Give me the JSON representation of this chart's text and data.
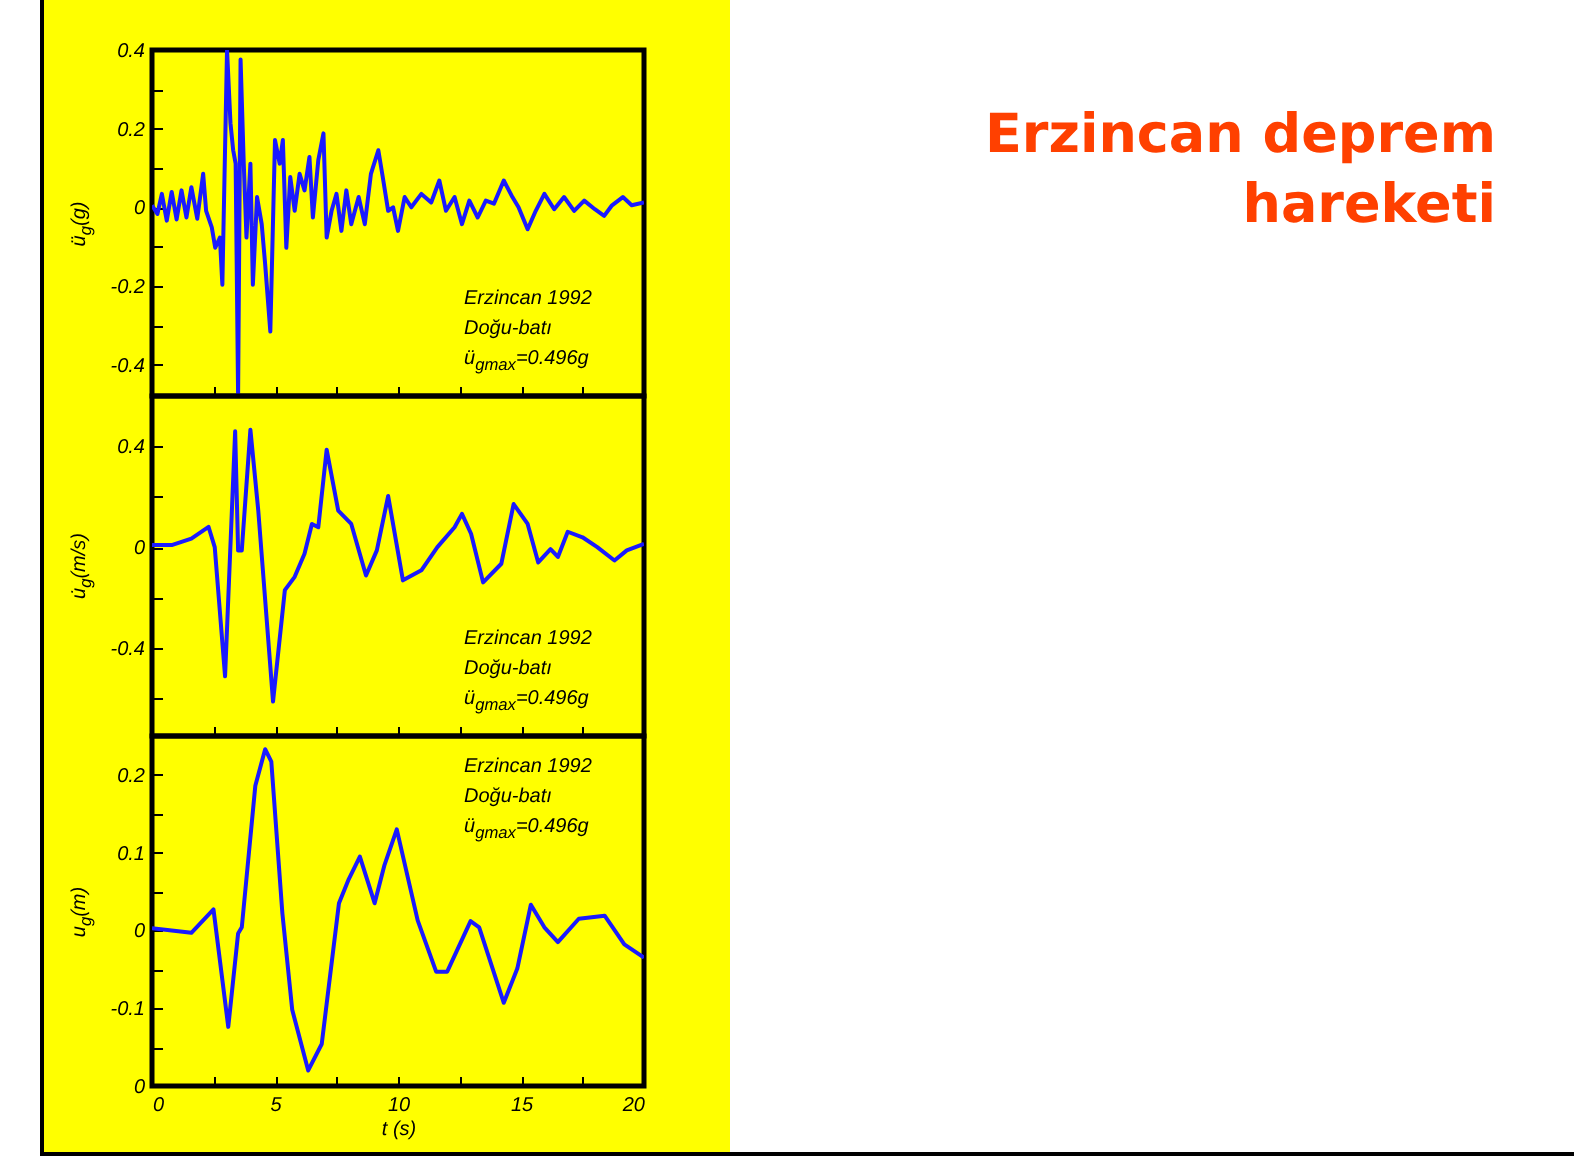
{
  "chart_data": [
    {
      "type": "line",
      "ylabel": "ü$_{g}$(g)",
      "annotations": [
        "Erzincan 1992",
        "Doğu-batı",
        "ü$_{gmax}$=0.496g"
      ],
      "tick_labels": "y",
      "xlim": [
        0,
        20
      ],
      "xticks": [
        0,
        {
          "value": 2.5,
          "label": null
        },
        5,
        {
          "value": 7.5,
          "label": null
        },
        10,
        {
          "value": 12.5,
          "label": null
        },
        15,
        {
          "value": 17.5,
          "label": null
        },
        20
      ],
      "ylim": [
        -0.48,
        0.4
      ],
      "yticks": [
        -0.4,
        {
          "value": -0.3,
          "label": null
        },
        -0.2,
        {
          "value": -0.1,
          "label": null
        },
        0,
        {
          "value": 0.1,
          "label": null
        },
        0.2,
        {
          "value": 0.3,
          "label": null
        },
        0.4
      ],
      "x": [
        0,
        0.22,
        0.4,
        0.6,
        0.8,
        1.0,
        1.2,
        1.4,
        1.6,
        1.84,
        2.08,
        2.2,
        2.43,
        2.57,
        2.76,
        2.86,
        3.05,
        3.19,
        3.3,
        3.4,
        3.5,
        3.6,
        3.73,
        3.84,
        4.0,
        4.1,
        4.27,
        4.46,
        4.6,
        4.81,
        5.0,
        5.19,
        5.32,
        5.46,
        5.62,
        5.8,
        6.0,
        6.2,
        6.4,
        6.54,
        6.76,
        6.97,
        7.1,
        7.3,
        7.5,
        7.7,
        7.9,
        8.1,
        8.4,
        8.65,
        8.9,
        9.2,
        9.38,
        9.6,
        9.8,
        10.0,
        10.27,
        10.54,
        10.95,
        11.35,
        11.68,
        11.95,
        12.3,
        12.6,
        12.9,
        13.24,
        13.57,
        13.9,
        14.3,
        14.65,
        14.9,
        15.27,
        15.6,
        15.95,
        16.35,
        16.75,
        17.16,
        17.57,
        18.0,
        18.38,
        18.7,
        19.14,
        19.5,
        20
      ],
      "series": [
        {
          "color": "#1a1aff",
          "values": [
            0.005,
            -0.017,
            0.034,
            -0.034,
            0.039,
            -0.031,
            0.043,
            -0.026,
            0.051,
            -0.029,
            0.085,
            -0.009,
            -0.051,
            -0.103,
            -0.077,
            -0.197,
            0.4,
            0.214,
            0.145,
            0.111,
            -0.48,
            0.376,
            0.111,
            -0.077,
            0.111,
            -0.197,
            0.026,
            -0.043,
            -0.145,
            -0.316,
            0.171,
            0.111,
            0.171,
            -0.103,
            0.077,
            -0.009,
            0.085,
            0.043,
            0.128,
            -0.026,
            0.12,
            0.188,
            -0.077,
            -0.009,
            0.034,
            -0.06,
            0.043,
            -0.043,
            0.026,
            -0.043,
            0.085,
            0.145,
            0.077,
            -0.009,
            0,
            -0.06,
            0.026,
            0,
            0.034,
            0.012,
            0.068,
            -0.009,
            0.026,
            -0.043,
            0.017,
            -0.026,
            0.017,
            0.009,
            0.068,
            0.026,
            0,
            -0.056,
            -0.009,
            0.034,
            -0.005,
            0.026,
            -0.009,
            0.017,
            -0.005,
            -0.022,
            0.005,
            0.026,
            0.005,
            0.012
          ]
        }
      ]
    },
    {
      "type": "line",
      "ylabel": "u̇$_{g}$(m/s)",
      "annotations": [
        "Erzincan 1992",
        "Doğu-batı",
        "ü$_{gmax}$=0.496g"
      ],
      "tick_labels": "y",
      "xlim": [
        0,
        20
      ],
      "xticks": [
        0,
        {
          "value": 2.5,
          "label": null
        },
        5,
        {
          "value": 7.5,
          "label": null
        },
        10,
        {
          "value": 12.5,
          "label": null
        },
        15,
        {
          "value": 17.5,
          "label": null
        },
        20
      ],
      "ylim": [
        -0.75,
        0.6
      ],
      "yticks": [
        {
          "value": -0.6,
          "label": null
        },
        -0.4,
        {
          "value": -0.2,
          "label": null
        },
        0,
        {
          "value": 0.2,
          "label": null
        },
        0.4
      ],
      "x": [
        0,
        0.8,
        1.6,
        2.3,
        2.55,
        2.97,
        3.38,
        3.5,
        3.65,
        4.0,
        4.32,
        4.92,
        5.4,
        5.8,
        6.2,
        6.5,
        6.76,
        7.1,
        7.57,
        8.1,
        8.7,
        9.14,
        9.6,
        10.2,
        10.95,
        11.6,
        12.3,
        12.6,
        12.97,
        13.46,
        14.2,
        14.7,
        15.27,
        15.7,
        16.2,
        16.5,
        16.9,
        17.5,
        18.1,
        18.8,
        19.3,
        20
      ],
      "series": [
        {
          "color": "#1a1aff",
          "values": [
            0.008,
            0.008,
            0.034,
            0.08,
            0,
            -0.513,
            0.46,
            -0.013,
            -0.013,
            0.466,
            0.145,
            -0.613,
            -0.171,
            -0.118,
            -0.026,
            0.092,
            0.079,
            0.387,
            0.145,
            0.092,
            -0.113,
            -0.013,
            0.203,
            -0.132,
            -0.092,
            0,
            0.079,
            0.132,
            0.053,
            -0.14,
            -0.066,
            0.171,
            0.092,
            -0.061,
            -0.008,
            -0.039,
            0.061,
            0.039,
            0,
            -0.053,
            -0.013,
            0.013
          ]
        }
      ]
    },
    {
      "type": "line",
      "ylabel": "u$_{g}$(m)",
      "xlabel": "t (s)",
      "annotations": [
        "Erzincan 1992",
        "Doğu-batı",
        "ü$_{gmax}$=0.496g"
      ],
      "xlim": [
        0,
        20
      ],
      "xticks": [
        0,
        {
          "value": 2.5,
          "label": null
        },
        5,
        {
          "value": 7.5,
          "label": null
        },
        10,
        {
          "value": 12.5,
          "label": null
        },
        15,
        {
          "value": 17.5,
          "label": null
        },
        20
      ],
      "ylim": [
        -0.2,
        0.25
      ],
      "yticks": [
        {
          "value": -0.2,
          "label": "0"
        },
        {
          "value": -0.15,
          "label": null
        },
        -0.1,
        {
          "value": -0.05,
          "label": null
        },
        0,
        {
          "value": 0.05,
          "label": null
        },
        0.1,
        {
          "value": 0.15,
          "label": null
        },
        0.2
      ],
      "x": [
        0,
        1.6,
        2.5,
        3.1,
        3.5,
        3.65,
        4.2,
        4.6,
        4.85,
        5.3,
        5.7,
        6.35,
        6.9,
        7.6,
        8.0,
        8.45,
        9.05,
        9.45,
        9.95,
        10.8,
        11.55,
        12.0,
        12.95,
        13.3,
        14.3,
        14.85,
        15.4,
        15.95,
        16.5,
        17.35,
        18.4,
        19.2,
        20
      ],
      "series": [
        {
          "color": "#1a1aff",
          "values": [
            0.003,
            -0.003,
            0.027,
            -0.124,
            -0.004,
            0.004,
            0.186,
            0.233,
            0.217,
            0.022,
            -0.102,
            -0.18,
            -0.146,
            0.035,
            0.066,
            0.095,
            0.035,
            0.084,
            0.13,
            0.013,
            -0.053,
            -0.053,
            0.012,
            0.004,
            -0.093,
            -0.049,
            0.033,
            0.004,
            -0.015,
            0.015,
            0.019,
            -0.018,
            -0.035
          ]
        }
      ]
    },
    {
      "type": "other",
      "title": "Erzincan deprem hareketi"
    }
  ]
}
